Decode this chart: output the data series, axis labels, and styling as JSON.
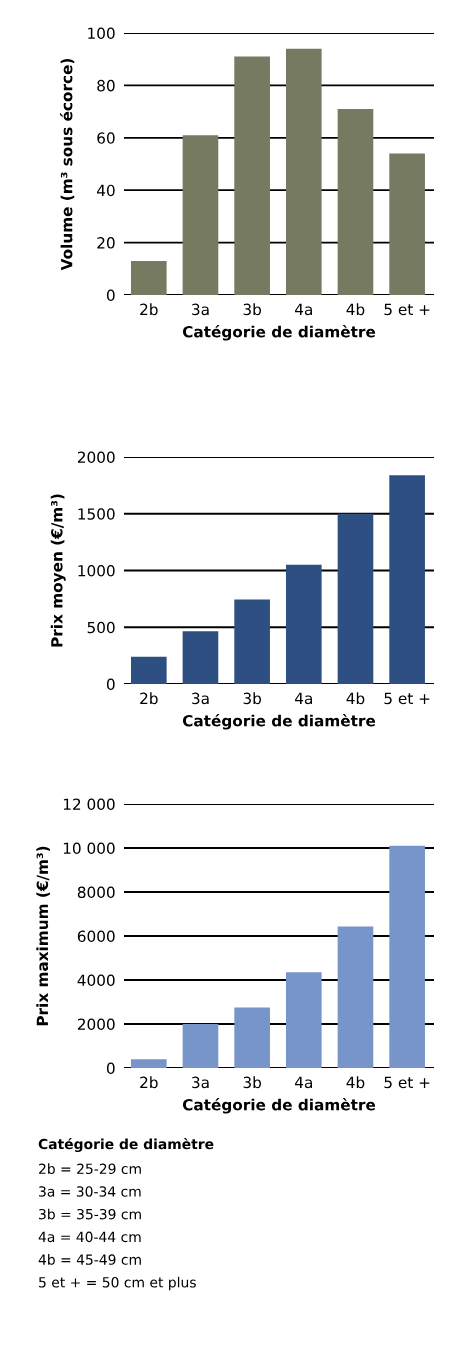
{
  "chart_data": [
    {
      "type": "bar",
      "categories": [
        "2b",
        "3a",
        "3b",
        "4a",
        "4b",
        "5 et +"
      ],
      "values": [
        13,
        61,
        91,
        94,
        71,
        54
      ],
      "color": "#757a60",
      "xlabel": "Catégorie de diamètre",
      "ylabel": "Volume (m³ sous écorce)",
      "ylim": [
        0,
        100
      ],
      "yticks": [
        0,
        20,
        40,
        60,
        80,
        100
      ],
      "grid": "y"
    },
    {
      "type": "bar",
      "categories": [
        "2b",
        "3a",
        "3b",
        "4a",
        "4b",
        "5 et +"
      ],
      "values": [
        240,
        465,
        745,
        1050,
        1500,
        1840
      ],
      "color": "#2d4f82",
      "xlabel": "Catégorie de diamètre",
      "ylabel": "Prix moyen (€/m³)",
      "ylim": [
        0,
        2000
      ],
      "yticks": [
        0,
        500,
        1000,
        1500,
        2000
      ],
      "grid": "y"
    },
    {
      "type": "bar",
      "categories": [
        "2b",
        "3a",
        "3b",
        "4a",
        "4b",
        "5 et +"
      ],
      "values": [
        400,
        2000,
        2750,
        4350,
        6430,
        10100
      ],
      "color": "#7895c9",
      "xlabel": "Catégorie de diamètre",
      "ylabel": "Prix maximum (€/m³)",
      "ylim": [
        0,
        12000
      ],
      "yticks": [
        0,
        2000,
        4000,
        6000,
        8000,
        {
          "value": 10000,
          "label": "10 000"
        },
        {
          "value": 12000,
          "label": "12 000"
        }
      ],
      "grid": "y",
      "annotations": [
        "Catégorie de diamètre",
        "2b = 25-29 cm",
        "3a = 30-34 cm",
        "3b = 35-39 cm",
        "4a = 40-44 cm",
        "4b = 45-49 cm",
        "5 et + = 50 cm et plus"
      ]
    }
  ]
}
